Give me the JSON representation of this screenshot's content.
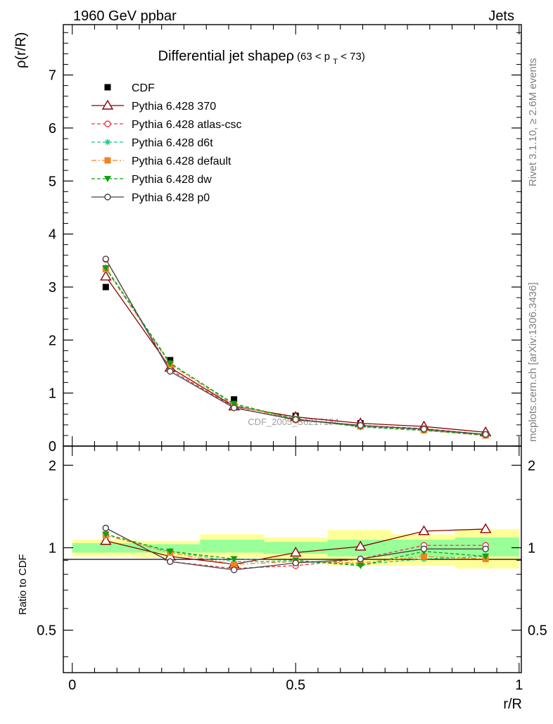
{
  "header": {
    "left": "1960 GeV ppbar",
    "right": "Jets",
    "side_top": "Rivet 3.1.10, ≥ 2.6M events",
    "side_bottom": "mcplots.cern.ch [arXiv:1306.3436]"
  },
  "main_panel": {
    "title_main": "Differential jet shapeρ",
    "title_range_open": "(63 < p",
    "title_range_sub": "T",
    "title_range_close": " < 73)",
    "ylabel": "ρ(r/R)",
    "yticks": [
      "0",
      "1",
      "2",
      "3",
      "4",
      "5",
      "6",
      "7"
    ],
    "watermark": "CDF_2005_S6217184"
  },
  "ratio_panel": {
    "ylabel": "Ratio to CDF",
    "yticks": [
      "0.5",
      "1",
      "2"
    ],
    "xticks": [
      "0",
      "0.5",
      "1"
    ],
    "xlabel": "r/R"
  },
  "chart_data": [
    {
      "type": "line",
      "panel": "main",
      "x": [
        0.075,
        0.219,
        0.362,
        0.5,
        0.645,
        0.787,
        0.925
      ],
      "xlim": [
        -0.02,
        1.005
      ],
      "ylim": [
        0,
        7.95
      ],
      "series": [
        {
          "name": "CDF",
          "color": "#000000",
          "marker": "filled-square",
          "style": "none",
          "values": [
            3.0,
            1.62,
            0.88,
            0.57,
            0.43,
            0.32,
            0.22
          ]
        },
        {
          "name": "Pythia 6.428 370",
          "color": "#8b0000",
          "marker": "open-triangle",
          "style": "solid",
          "values": [
            3.2,
            1.48,
            0.75,
            0.55,
            0.43,
            0.37,
            0.26
          ]
        },
        {
          "name": "Pythia 6.428 atlas-csc",
          "color": "#e63946",
          "marker": "open-circle",
          "style": "dashed",
          "values": [
            3.52,
            1.44,
            0.73,
            0.49,
            0.39,
            0.33,
            0.22
          ]
        },
        {
          "name": "Pythia 6.428 d6t",
          "color": "#17c48a",
          "marker": "asterisk",
          "style": "dashed",
          "values": [
            3.37,
            1.57,
            0.78,
            0.51,
            0.36,
            0.29,
            0.21
          ]
        },
        {
          "name": "Pythia 6.428 default",
          "color": "#f58220",
          "marker": "filled-square",
          "style": "dashdot",
          "values": [
            3.34,
            1.54,
            0.77,
            0.5,
            0.37,
            0.3,
            0.2
          ]
        },
        {
          "name": "Pythia 6.428 dw",
          "color": "#10a010",
          "marker": "filled-triangle-down",
          "style": "dashed",
          "values": [
            3.36,
            1.56,
            0.8,
            0.51,
            0.37,
            0.31,
            0.2
          ]
        },
        {
          "name": "Pythia 6.428 p0",
          "color": "#444444",
          "marker": "open-circle",
          "style": "solid",
          "values": [
            3.53,
            1.41,
            0.72,
            0.5,
            0.39,
            0.32,
            0.22
          ]
        }
      ]
    },
    {
      "type": "line",
      "panel": "ratio",
      "x": [
        0.075,
        0.219,
        0.362,
        0.5,
        0.645,
        0.787,
        0.925
      ],
      "bin_edges": [
        0.0,
        0.143,
        0.286,
        0.429,
        0.571,
        0.714,
        0.857,
        1.0
      ],
      "xlim": [
        -0.02,
        1.005
      ],
      "ylim": [
        0.35,
        2.35
      ],
      "log_y": true,
      "uncertainty_bands": {
        "green": [
          [
            0.96,
            1.04
          ],
          [
            0.96,
            1.03
          ],
          [
            0.96,
            1.07
          ],
          [
            0.95,
            1.05
          ],
          [
            0.93,
            1.07
          ],
          [
            0.92,
            1.07
          ],
          [
            0.93,
            1.09
          ]
        ],
        "yellow": [
          [
            0.93,
            1.07
          ],
          [
            0.92,
            1.06
          ],
          [
            0.92,
            1.12
          ],
          [
            0.91,
            1.09
          ],
          [
            0.86,
            1.16
          ],
          [
            0.86,
            1.12
          ],
          [
            0.84,
            1.17
          ]
        ]
      },
      "series": [
        {
          "name": "Pythia 6.428 370",
          "values": [
            1.06,
            0.93,
            0.87,
            0.96,
            1.01,
            1.15,
            1.17
          ]
        },
        {
          "name": "Pythia 6.428 atlas-csc",
          "values": [
            1.18,
            0.89,
            0.84,
            0.86,
            0.91,
            1.02,
            1.02
          ]
        },
        {
          "name": "Pythia 6.428 d6t",
          "values": [
            1.12,
            0.97,
            0.89,
            0.89,
            0.87,
            0.91,
            0.93
          ]
        },
        {
          "name": "Pythia 6.428 default",
          "values": [
            1.11,
            0.96,
            0.87,
            0.89,
            0.88,
            0.93,
            0.91
          ]
        },
        {
          "name": "Pythia 6.428 dw",
          "values": [
            1.12,
            0.97,
            0.91,
            0.9,
            0.86,
            0.97,
            0.93
          ]
        },
        {
          "name": "Pythia 6.428 p0",
          "values": [
            1.18,
            0.89,
            0.83,
            0.88,
            0.91,
            0.99,
            0.99
          ]
        }
      ]
    }
  ]
}
